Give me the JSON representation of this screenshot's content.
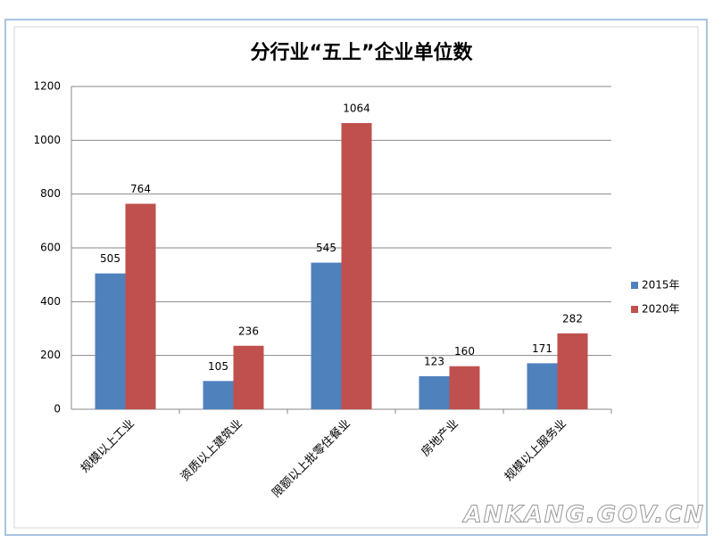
{
  "chart_data": {
    "type": "bar",
    "title": "分行业“五上”企业单位数",
    "categories": [
      "规模以上工业",
      "资质以上建筑业",
      "限额以上批零住餐业",
      "房地产业",
      "规模以上服务业"
    ],
    "series": [
      {
        "name": "2015年",
        "color": "#4f81bd",
        "values": [
          505,
          105,
          545,
          123,
          171
        ]
      },
      {
        "name": "2020年",
        "color": "#c0504d",
        "values": [
          764,
          236,
          1064,
          160,
          282
        ]
      }
    ],
    "ylim": [
      0,
      1200
    ],
    "yticks": [
      0,
      200,
      400,
      600,
      800,
      1000,
      1200
    ],
    "grid": true,
    "legend": "right",
    "watermark": "ANKANG.GOV.CN"
  }
}
